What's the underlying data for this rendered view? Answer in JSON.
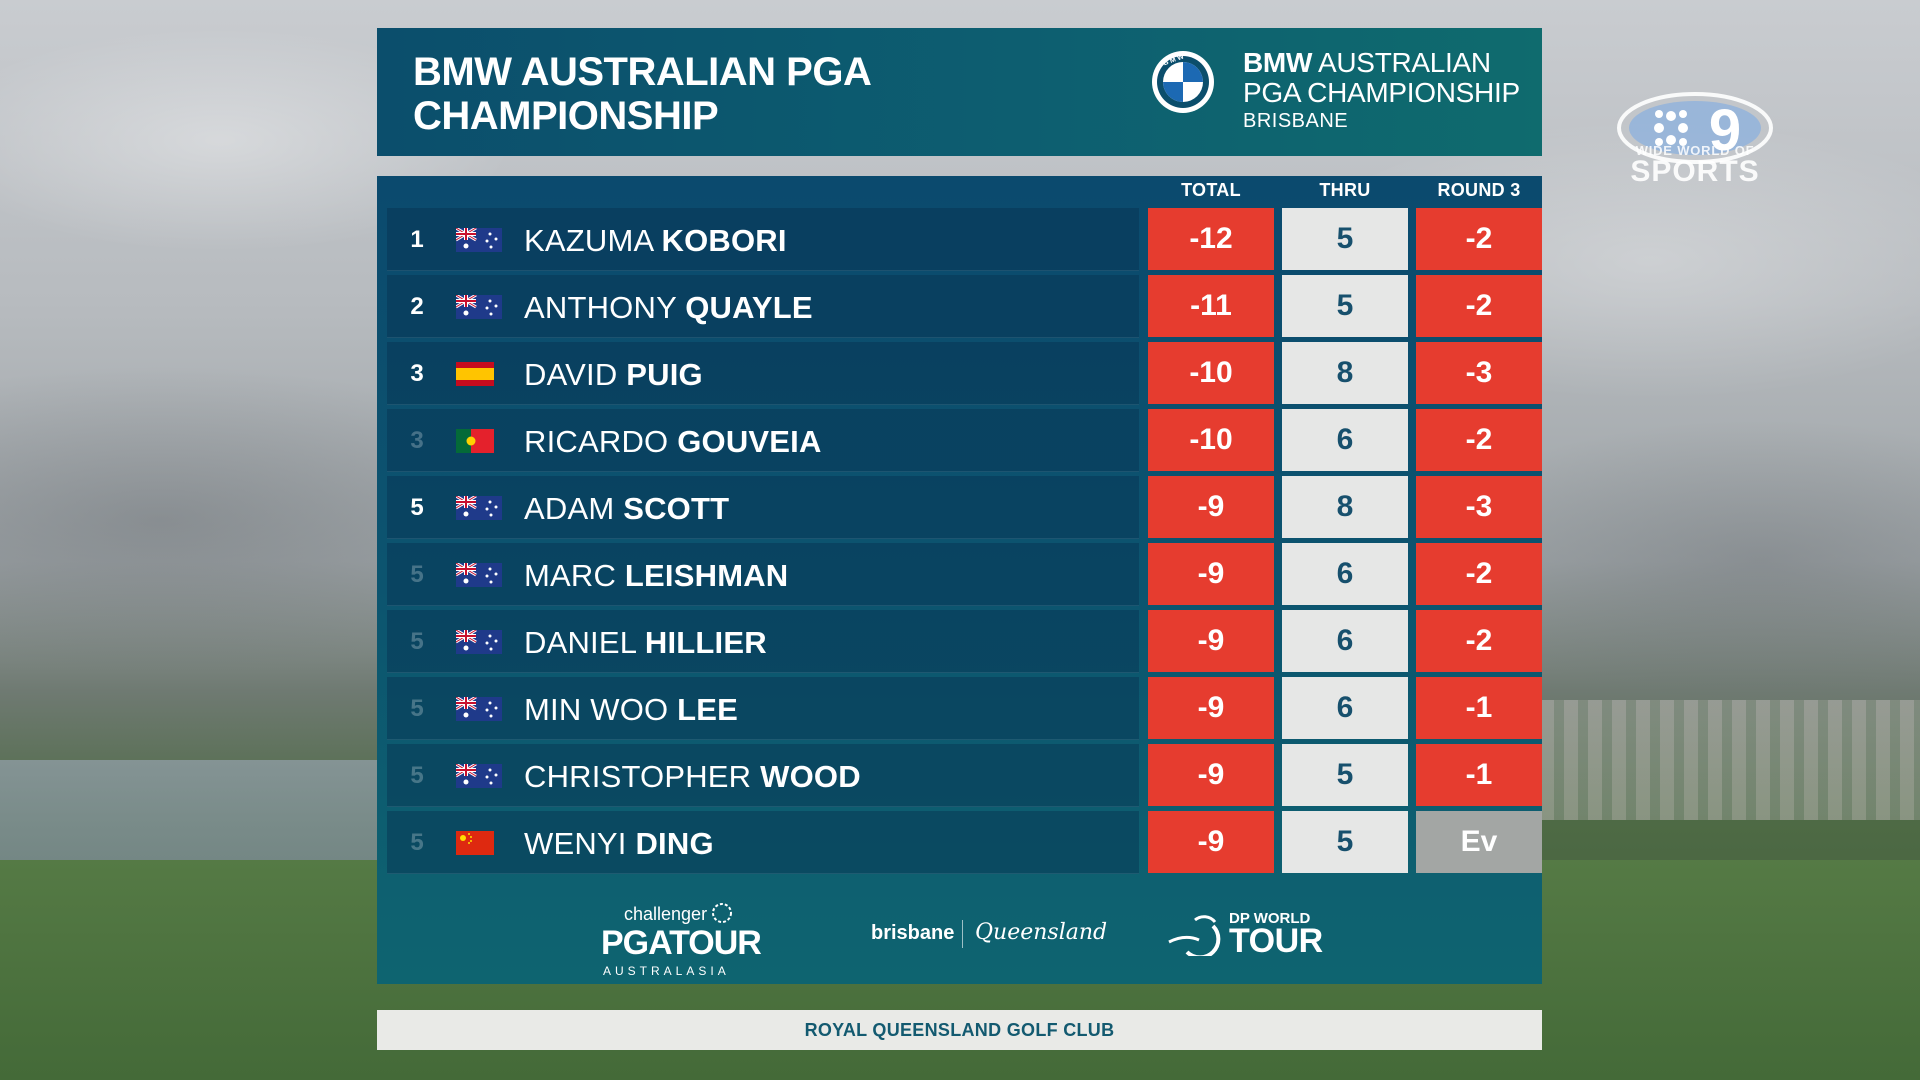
{
  "header": {
    "title_line1": "BMW AUSTRALIAN PGA",
    "title_line2": "CHAMPIONSHIP",
    "event_brand": "BMW",
    "event_line1_rest": "AUSTRALIAN",
    "event_line2": "PGA CHAMPIONSHIP",
    "event_city": "BRISBANE"
  },
  "columns": {
    "total": "TOTAL",
    "thru": "THRU",
    "round": "ROUND 3"
  },
  "players": [
    {
      "pos": "1",
      "tie": false,
      "flag": "australia-flag-icon",
      "first": "KAZUMA",
      "last": "KOBORI",
      "total": "-12",
      "thru": "5",
      "round": "-2"
    },
    {
      "pos": "2",
      "tie": false,
      "flag": "australia-flag-icon",
      "first": "ANTHONY",
      "last": "QUAYLE",
      "total": "-11",
      "thru": "5",
      "round": "-2"
    },
    {
      "pos": "3",
      "tie": false,
      "flag": "spain-flag-icon",
      "first": "DAVID",
      "last": "PUIG",
      "total": "-10",
      "thru": "8",
      "round": "-3"
    },
    {
      "pos": "3",
      "tie": true,
      "flag": "portugal-flag-icon",
      "first": "RICARDO",
      "last": "GOUVEIA",
      "total": "-10",
      "thru": "6",
      "round": "-2"
    },
    {
      "pos": "5",
      "tie": false,
      "flag": "australia-flag-icon",
      "first": "ADAM",
      "last": "SCOTT",
      "total": "-9",
      "thru": "8",
      "round": "-3"
    },
    {
      "pos": "5",
      "tie": true,
      "flag": "australia-flag-icon",
      "first": "MARC",
      "last": "LEISHMAN",
      "total": "-9",
      "thru": "6",
      "round": "-2"
    },
    {
      "pos": "5",
      "tie": true,
      "flag": "australia-flag-icon",
      "first": "DANIEL",
      "last": "HILLIER",
      "total": "-9",
      "thru": "6",
      "round": "-2"
    },
    {
      "pos": "5",
      "tie": true,
      "flag": "australia-flag-icon",
      "first": "MIN WOO",
      "last": "LEE",
      "total": "-9",
      "thru": "6",
      "round": "-1"
    },
    {
      "pos": "5",
      "tie": true,
      "flag": "australia-flag-icon",
      "first": "CHRISTOPHER",
      "last": "WOOD",
      "total": "-9",
      "thru": "5",
      "round": "-1"
    },
    {
      "pos": "5",
      "tie": true,
      "flag": "china-flag-icon",
      "first": "WENYI",
      "last": "DING",
      "total": "-9",
      "thru": "5",
      "round": "Ev"
    }
  ],
  "sponsors": {
    "challenger": "challenger",
    "pga_tour": "PGATOUR",
    "australasia": "AUSTRALASIA",
    "brisbane": "brisbane",
    "queensland": "Queensland",
    "dp_world": "DP WORLD",
    "dp_tour": "TOUR"
  },
  "footer": {
    "venue": "ROYAL QUEENSLAND GOLF CLUB"
  },
  "broadcaster": {
    "tagline": "WIDE WORLD OF",
    "name": "SPORTS"
  },
  "colors": {
    "panel": "#0b4e6c",
    "under_par": "#e63c2f",
    "thru_cell": "#e6e7e6",
    "even_par": "#a3a6a4",
    "footer_bg": "#e9eae7"
  }
}
